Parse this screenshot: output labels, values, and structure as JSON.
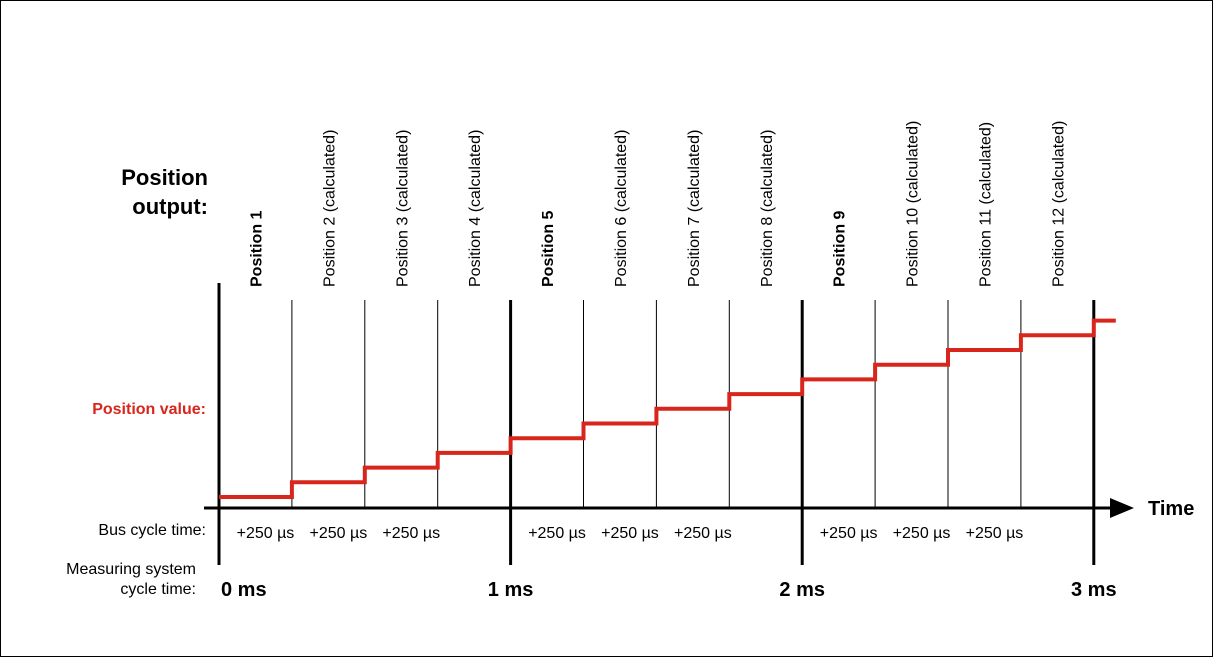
{
  "headings": {
    "position_output": [
      "Position",
      "output:"
    ],
    "position_value": "Position value:",
    "bus_cycle": "Bus cycle time:",
    "measuring_cycle": [
      "Measuring system",
      "cycle time:"
    ],
    "time_axis": "Time"
  },
  "positions": [
    {
      "label": "Position 1",
      "bold": true
    },
    {
      "label": "Position 2 (calculated)",
      "bold": false
    },
    {
      "label": "Position 3 (calculated)",
      "bold": false
    },
    {
      "label": "Position 4 (calculated)",
      "bold": false
    },
    {
      "label": "Position 5",
      "bold": true
    },
    {
      "label": "Position 6 (calculated)",
      "bold": false
    },
    {
      "label": "Position 7 (calculated)",
      "bold": false
    },
    {
      "label": "Position 8 (calculated)",
      "bold": false
    },
    {
      "label": "Position 9",
      "bold": true
    },
    {
      "label": "Position 10 (calculated)",
      "bold": false
    },
    {
      "label": "Position 11 (calculated)",
      "bold": false
    },
    {
      "label": "Position 12 (calculated)",
      "bold": false
    }
  ],
  "bus_cycle_increment": "+250 µs",
  "ms_labels": [
    "0 ms",
    "1 ms",
    "2 ms",
    "3 ms"
  ],
  "colors": {
    "signal": "#d9261c",
    "axis": "#000000"
  }
}
